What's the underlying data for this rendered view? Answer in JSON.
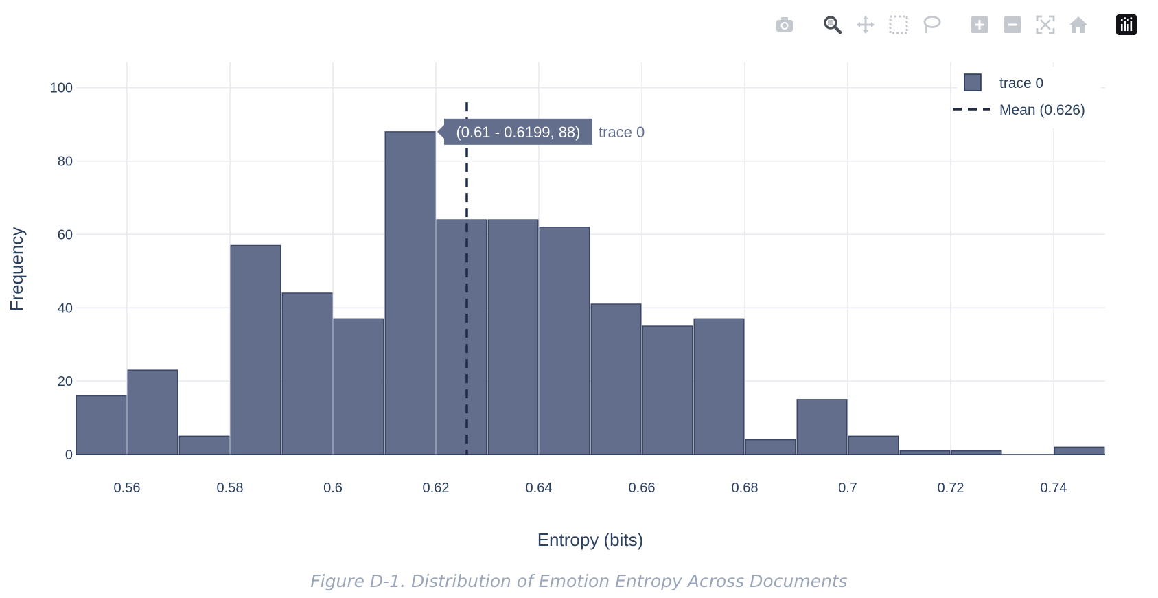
{
  "modebar": {
    "groups": [
      [
        "camera-icon"
      ],
      [
        "zoom-icon",
        "pan-icon",
        "box-select-icon",
        "lasso-select-icon"
      ],
      [
        "zoom-in-icon",
        "zoom-out-icon",
        "autoscale-icon",
        "reset-axes-icon"
      ],
      [
        "plotly-logo-icon"
      ]
    ],
    "active": "zoom-icon"
  },
  "chart_data": {
    "type": "bar",
    "subtype": "histogram",
    "xlabel": "Entropy (bits)",
    "ylabel": "Frequency",
    "xlim": [
      0.55,
      0.75
    ],
    "ylim": [
      0,
      105
    ],
    "xticks": [
      0.56,
      0.58,
      0.6,
      0.62,
      0.64,
      0.66,
      0.68,
      0.7,
      0.72,
      0.74
    ],
    "xtick_labels": [
      "0.56",
      "0.58",
      "0.6",
      "0.62",
      "0.64",
      "0.66",
      "0.68",
      "0.7",
      "0.72",
      "0.74"
    ],
    "yticks": [
      0,
      20,
      40,
      60,
      80,
      100
    ],
    "ytick_labels": [
      "0",
      "20",
      "40",
      "60",
      "80",
      "100"
    ],
    "grid": true,
    "bin_width": 0.01,
    "bins_start": [
      0.55,
      0.56,
      0.57,
      0.58,
      0.59,
      0.6,
      0.61,
      0.62,
      0.63,
      0.64,
      0.65,
      0.66,
      0.67,
      0.68,
      0.69,
      0.7,
      0.71,
      0.72,
      0.73,
      0.74
    ],
    "values": [
      16,
      23,
      5,
      57,
      44,
      37,
      88,
      64,
      64,
      62,
      41,
      35,
      37,
      4,
      15,
      5,
      1,
      1,
      0,
      2
    ],
    "series": [
      {
        "name": "trace 0",
        "color": "#636e8c"
      }
    ],
    "mean_line": {
      "name": "Mean (0.626)",
      "x": 0.626,
      "color": "#1f2a44",
      "style": "dash"
    },
    "legend": {
      "position": "top-right",
      "entries": [
        "trace 0",
        "Mean (0.626)"
      ]
    },
    "hover": {
      "bin_index": 6,
      "label": "(0.61 - 0.6199, 88)",
      "trace": "trace 0"
    }
  },
  "caption": "Figure D-1. Distribution of Emotion Entropy Across Documents"
}
